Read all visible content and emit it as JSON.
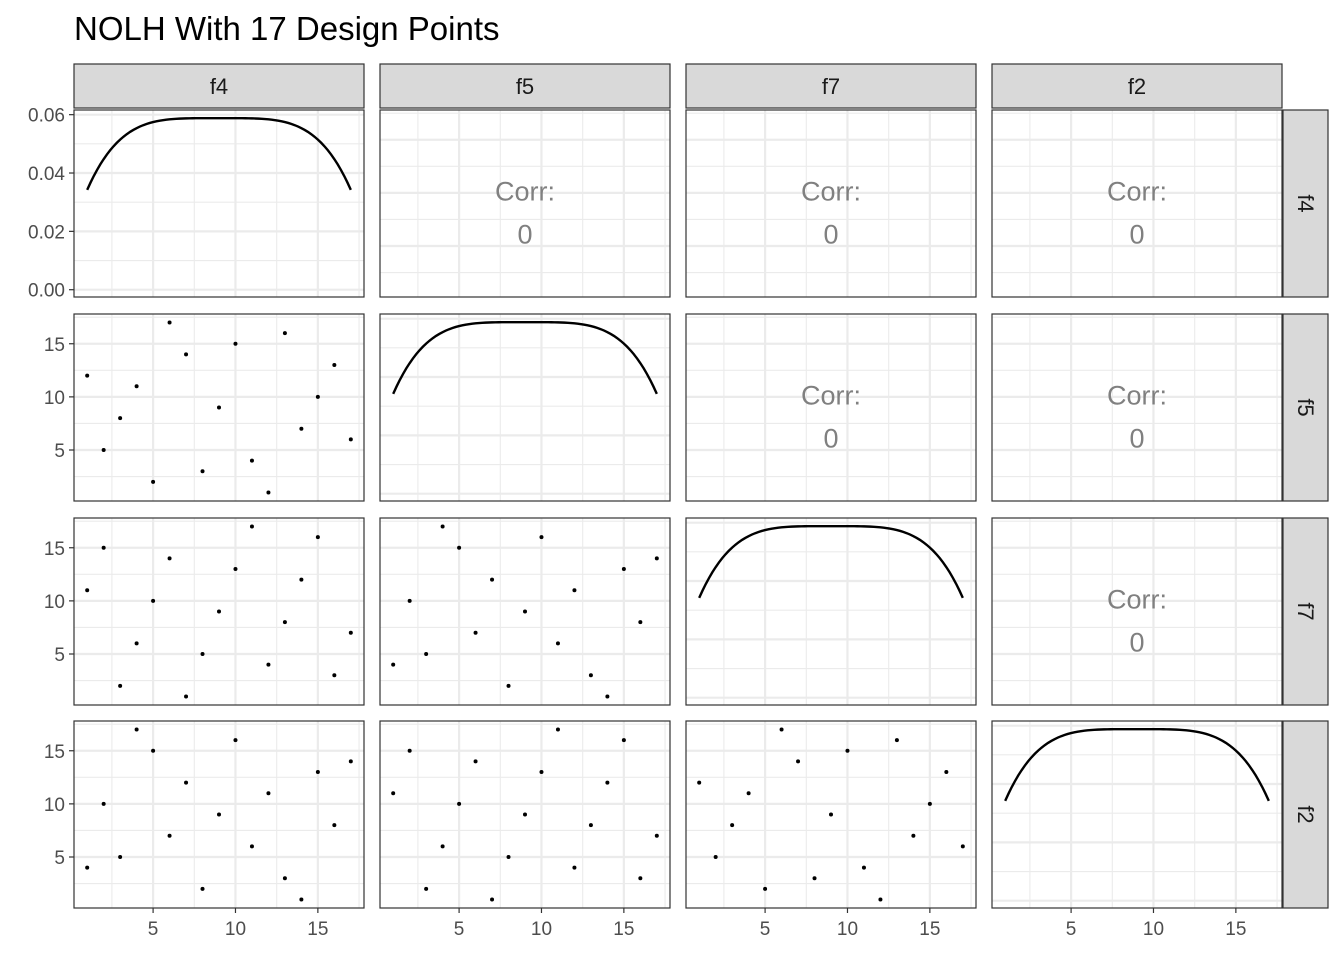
{
  "chart_data": {
    "type": "scatter",
    "title": "NOLH With 17 Design Points",
    "variables": [
      "f4",
      "f5",
      "f7",
      "f2"
    ],
    "design_points": {
      "f4": [
        1,
        2,
        3,
        4,
        5,
        6,
        7,
        8,
        9,
        10,
        11,
        12,
        13,
        14,
        15,
        16,
        17
      ],
      "f5": [
        12,
        5,
        8,
        11,
        2,
        17,
        14,
        3,
        9,
        15,
        4,
        1,
        16,
        7,
        10,
        13,
        6
      ],
      "f7": [
        11,
        15,
        2,
        6,
        10,
        14,
        1,
        5,
        9,
        13,
        17,
        4,
        8,
        12,
        16,
        3,
        7
      ],
      "f2": [
        4,
        10,
        5,
        17,
        15,
        7,
        12,
        2,
        9,
        16,
        6,
        11,
        3,
        1,
        13,
        8,
        14
      ]
    },
    "diagonal": {
      "type": "density",
      "y_ticks": [
        "0.00",
        "0.02",
        "0.04",
        "0.06"
      ],
      "y_tick_values": [
        0,
        0.02,
        0.04,
        0.06
      ],
      "ylim": [
        -0.0025,
        0.0616
      ],
      "density_peak": 0.0588,
      "density_edge": 0.0342
    },
    "upper_panels": {
      "label": "Corr:",
      "values": {
        "f4_f5": "0",
        "f4_f7": "0",
        "f4_f2": "0",
        "f5_f7": "0",
        "f5_f2": "0",
        "f7_f2": "0"
      }
    },
    "axes": {
      "xlim": [
        0.2,
        17.8
      ],
      "ylim": [
        0.2,
        17.8
      ],
      "ticks": [
        5,
        10,
        15
      ],
      "minor_ticks": [
        2.5,
        7.5,
        12.5,
        17.5
      ]
    },
    "grid": true,
    "colors": {
      "strip_fill": "#d9d9d9",
      "grid": "#ebebeb",
      "panel_border": "#333333",
      "points": "#000000",
      "density_line": "#000000",
      "corr_text": "#808080"
    }
  }
}
